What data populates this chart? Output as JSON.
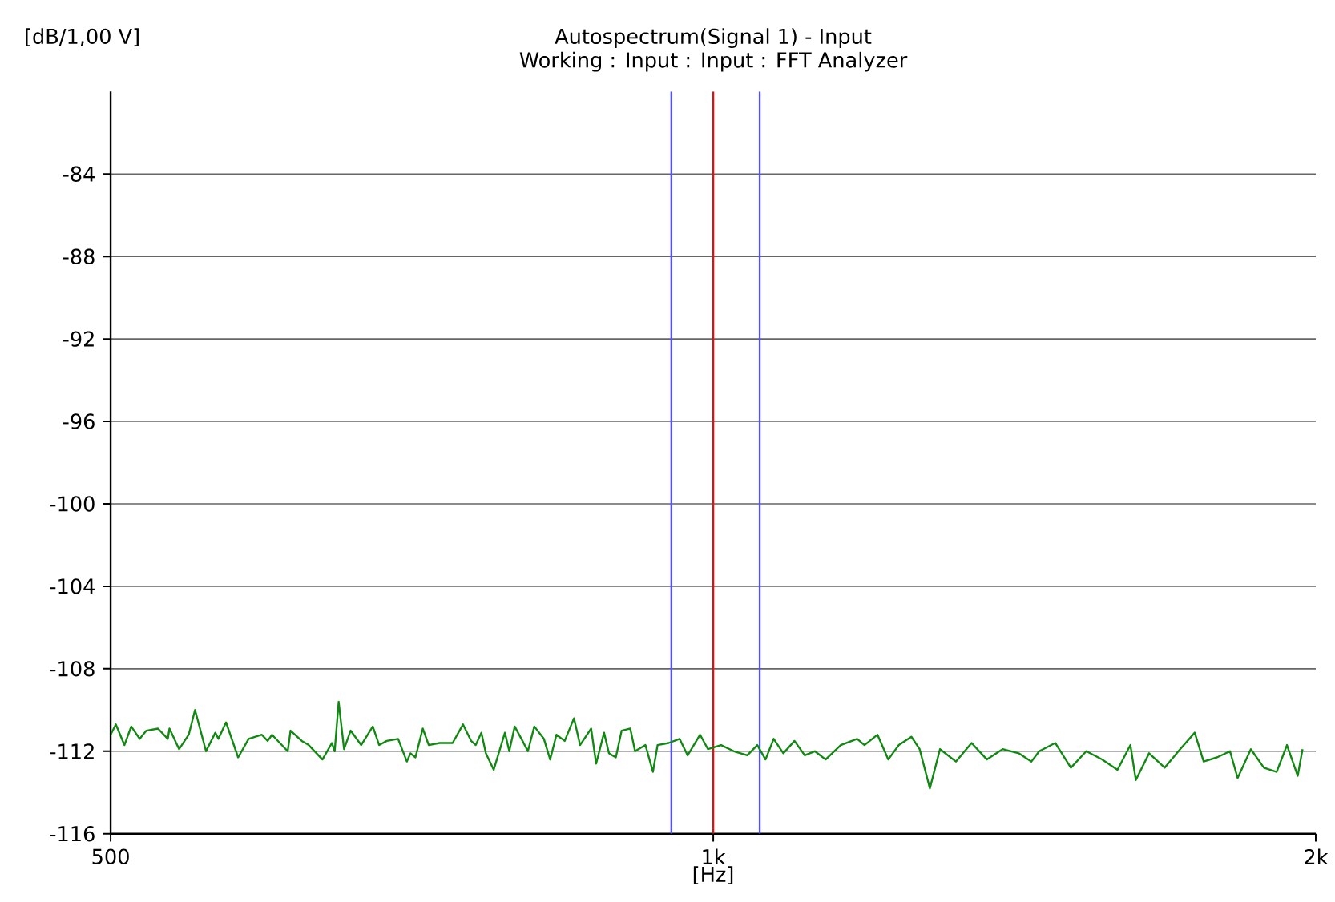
{
  "chart_data": {
    "type": "line",
    "title": "Autospectrum(Signal 1) - Input",
    "subtitle": "Working : Input : Input : FFT Analyzer",
    "xlabel": "[Hz]",
    "ylabel": "[dB/1,00 V]",
    "log": "x",
    "xlim": [
      500,
      2000
    ],
    "xticks": [
      500,
      {
        "value": 1000,
        "label": "1k"
      },
      {
        "value": 2000,
        "label": "2k"
      }
    ],
    "ylim": [
      -116,
      -80
    ],
    "yticks": [
      -84,
      -88,
      -92,
      -96,
      -100,
      -104,
      -108,
      -112,
      -116
    ],
    "grid": "y",
    "marker": "none",
    "line_style": "solid",
    "ref_lines": [
      {
        "axis": "x",
        "value": 953,
        "color": "#5050ff"
      },
      {
        "axis": "x",
        "value": 1000,
        "color": "#dd1111"
      },
      {
        "axis": "x",
        "value": 1055,
        "color": "#5050ff"
      }
    ],
    "series": [
      {
        "color": "#118811",
        "x": [
          500,
          503,
          508,
          512,
          517,
          521,
          528,
          534,
          535,
          541,
          547,
          551,
          558,
          564,
          566,
          571,
          579,
          586,
          595,
          599,
          602,
          613,
          615,
          623,
          628,
          638,
          645,
          647,
          650,
          654,
          659,
          667,
          676,
          681,
          687,
          696,
          703,
          706,
          710,
          716,
          721,
          730,
          741,
          750,
          757,
          761,
          766,
          770,
          777,
          787,
          791,
          796,
          803,
          808,
          814,
          823,
          829,
          835,
          843,
          852,
          858,
          869,
          874,
          882,
          887,
          894,
          900,
          909,
          914,
          925,
          933,
          938,
          950,
          962,
          971,
          985,
          994,
          1009,
          1024,
          1040,
          1052,
          1062,
          1072,
          1084,
          1098,
          1111,
          1124,
          1138,
          1158,
          1180,
          1190,
          1208,
          1223,
          1238,
          1256,
          1268,
          1283,
          1298,
          1322,
          1346,
          1370,
          1395,
          1421,
          1442,
          1455,
          1482,
          1509,
          1536,
          1564,
          1592,
          1616,
          1626,
          1651,
          1681,
          1711,
          1740,
          1758,
          1785,
          1812,
          1828,
          1856,
          1884,
          1912,
          1935,
          1959,
          1970
        ],
        "values": [
          -111.2,
          -110.7,
          -111.7,
          -110.8,
          -111.4,
          -111.0,
          -110.9,
          -111.4,
          -110.9,
          -111.9,
          -111.2,
          -110.0,
          -112.0,
          -111.1,
          -111.4,
          -110.6,
          -112.3,
          -111.4,
          -111.2,
          -111.5,
          -111.2,
          -112.0,
          -111.0,
          -111.5,
          -111.7,
          -112.4,
          -111.6,
          -112.0,
          -109.6,
          -111.9,
          -111.0,
          -111.7,
          -110.8,
          -111.7,
          -111.5,
          -111.4,
          -112.5,
          -112.1,
          -112.3,
          -110.9,
          -111.7,
          -111.6,
          -111.6,
          -110.7,
          -111.5,
          -111.7,
          -111.1,
          -112.1,
          -112.9,
          -111.1,
          -112.0,
          -110.8,
          -111.5,
          -112.0,
          -110.8,
          -111.4,
          -112.4,
          -111.2,
          -111.5,
          -110.4,
          -111.7,
          -110.9,
          -112.6,
          -111.1,
          -112.1,
          -112.3,
          -111.0,
          -110.9,
          -112.0,
          -111.7,
          -113.0,
          -111.7,
          -111.6,
          -111.4,
          -112.2,
          -111.2,
          -111.9,
          -111.7,
          -112.0,
          -112.2,
          -111.7,
          -112.4,
          -111.4,
          -112.1,
          -111.5,
          -112.2,
          -112.0,
          -112.4,
          -111.7,
          -111.4,
          -111.7,
          -111.2,
          -112.4,
          -111.7,
          -111.3,
          -111.9,
          -113.8,
          -111.9,
          -112.5,
          -111.6,
          -112.4,
          -111.9,
          -112.1,
          -112.5,
          -112.0,
          -111.6,
          -112.8,
          -112.0,
          -112.4,
          -112.9,
          -111.7,
          -113.4,
          -112.1,
          -112.8,
          -111.9,
          -111.1,
          -112.5,
          -112.3,
          -112.0,
          -113.3,
          -111.9,
          -112.8,
          -113.0,
          -111.7,
          -113.2,
          -111.9
        ]
      }
    ]
  }
}
